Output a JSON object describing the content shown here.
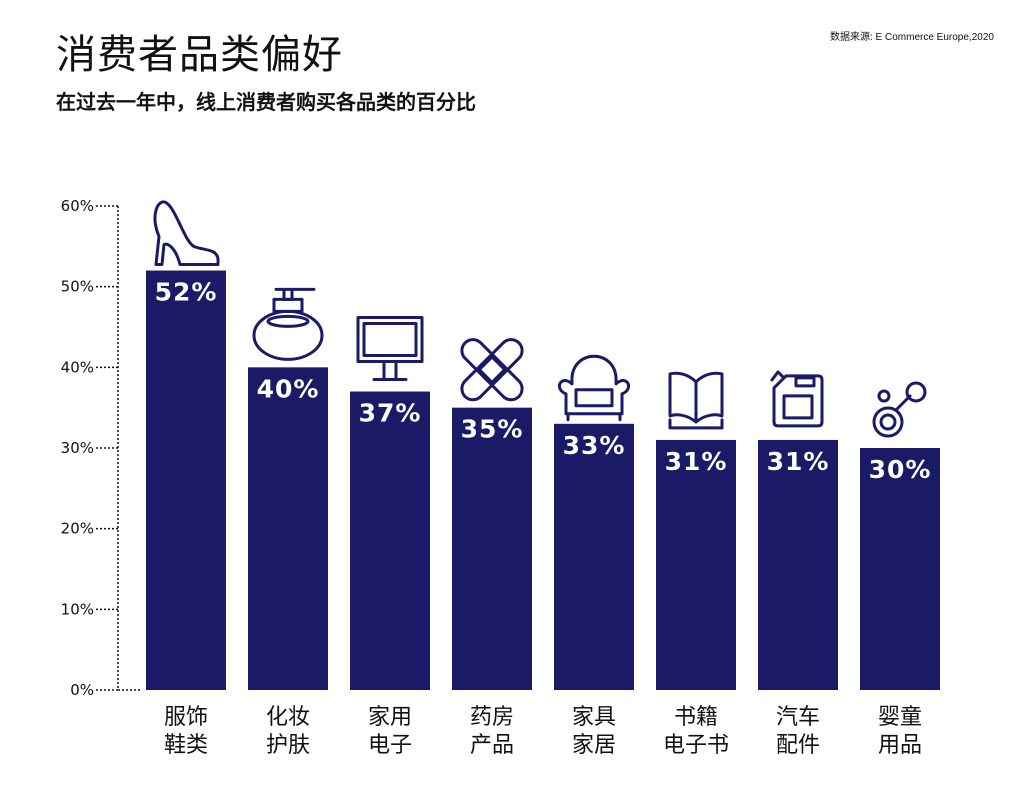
{
  "header": {
    "title": "消费者品类偏好",
    "subtitle": "在过去一年中，线上消费者购买各品类的百分比",
    "source": "数据来源:  E Commerce Europe,2020"
  },
  "colors": {
    "bar": "#1b1a66",
    "text": "#111111",
    "bar_label": "#ffffff"
  },
  "chart_data": {
    "type": "bar",
    "title": "消费者品类偏好",
    "subtitle": "在过去一年中，线上消费者购买各品类的百分比",
    "ylim": [
      0,
      60
    ],
    "yticks": [
      "0%",
      "10%",
      "20%",
      "30%",
      "40%",
      "50%",
      "60%"
    ],
    "ytick_values": [
      0,
      10,
      20,
      30,
      40,
      50,
      60
    ],
    "grid": false,
    "categories": [
      {
        "lines": [
          "服饰",
          "鞋类"
        ],
        "value": 52,
        "label": "52%",
        "icon": "high-heel-shoe-icon"
      },
      {
        "lines": [
          "化妆",
          "护肤"
        ],
        "value": 40,
        "label": "40%",
        "icon": "perfume-bottle-icon"
      },
      {
        "lines": [
          "家用",
          "电子"
        ],
        "value": 37,
        "label": "37%",
        "icon": "monitor-icon"
      },
      {
        "lines": [
          "药房",
          "产品"
        ],
        "value": 35,
        "label": "35%",
        "icon": "bandage-icon"
      },
      {
        "lines": [
          "家具",
          "家居"
        ],
        "value": 33,
        "label": "33%",
        "icon": "armchair-icon"
      },
      {
        "lines": [
          "书籍",
          "电子书"
        ],
        "value": 31,
        "label": "31%",
        "icon": "open-book-icon"
      },
      {
        "lines": [
          "汽车",
          "配件"
        ],
        "value": 31,
        "label": "31%",
        "icon": "fuel-canister-icon"
      },
      {
        "lines": [
          "婴童",
          "用品"
        ],
        "value": 30,
        "label": "30%",
        "icon": "pacifier-icon"
      }
    ]
  }
}
